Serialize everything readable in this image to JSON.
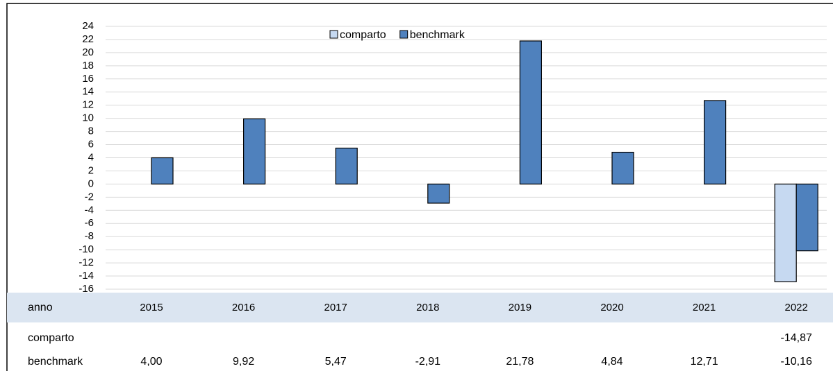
{
  "chart_data": {
    "type": "bar",
    "categories": [
      "2015",
      "2016",
      "2017",
      "2018",
      "2019",
      "2020",
      "2021",
      "2022"
    ],
    "table_header": "anno",
    "series": [
      {
        "name": "comparto",
        "color": "#c6d9f1",
        "values": [
          null,
          null,
          null,
          null,
          null,
          null,
          null,
          -14.87
        ],
        "value_labels": [
          null,
          null,
          null,
          null,
          null,
          null,
          null,
          "-14,87"
        ]
      },
      {
        "name": "benchmark",
        "color": "#4f81bd",
        "values": [
          4.0,
          9.92,
          5.47,
          -2.91,
          21.78,
          4.84,
          12.71,
          -10.16
        ],
        "value_labels": [
          "4,00",
          "9,92",
          "5,47",
          "-2,91",
          "21,78",
          "4,84",
          "12,71",
          "-10,16"
        ]
      }
    ],
    "ylim": [
      -16,
      24
    ],
    "yticks": [
      -16,
      -14,
      -12,
      -10,
      -8,
      -6,
      -4,
      -2,
      0,
      2,
      4,
      6,
      8,
      10,
      12,
      14,
      16,
      18,
      20,
      22,
      24
    ],
    "grid": true,
    "legend": "top"
  }
}
